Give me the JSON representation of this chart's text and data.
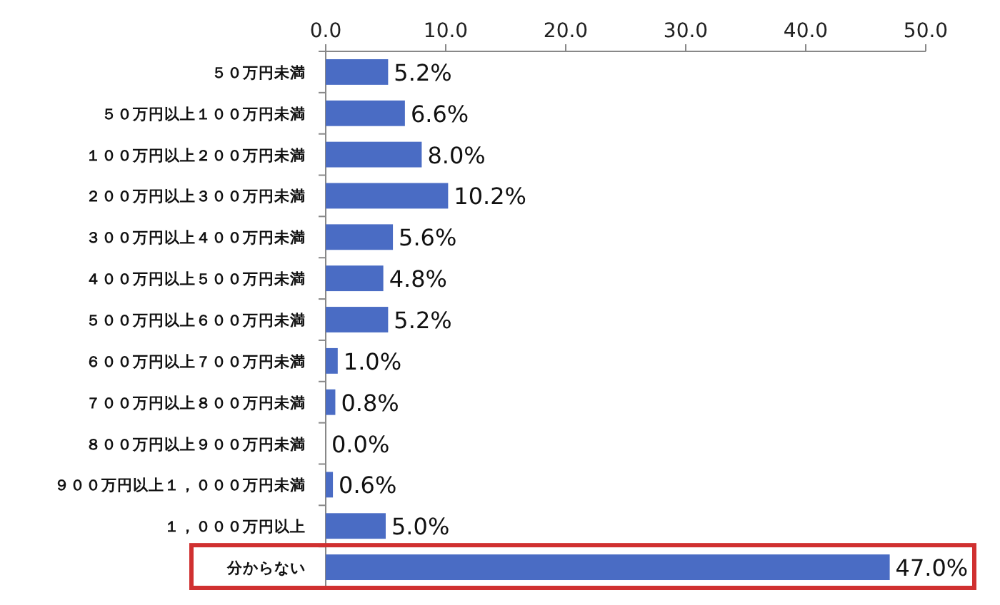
{
  "chart_data": {
    "type": "bar",
    "orientation": "horizontal",
    "categories": [
      "５０万円未満",
      "５０万円以上１００万円未満",
      "１００万円以上２００万円未満",
      "２００万円以上３００万円未満",
      "３００万円以上４００万円未満",
      "４００万円以上５００万円未満",
      "５００万円以上６００万円未満",
      "６００万円以上７００万円未満",
      "７００万円以上８００万円未満",
      "８００万円以上９００万円未満",
      "９００万円以上１，０００万円未満",
      "１，０００万円以上",
      "分からない"
    ],
    "values": [
      5.2,
      6.6,
      8.0,
      10.2,
      5.6,
      4.8,
      5.2,
      1.0,
      0.8,
      0.0,
      0.6,
      5.0,
      47.0
    ],
    "value_labels": [
      "5.2%",
      "6.6%",
      "8.0%",
      "10.2%",
      "5.6%",
      "4.8%",
      "5.2%",
      "1.0%",
      "0.8%",
      "0.0%",
      "0.6%",
      "5.0%",
      "47.0%"
    ],
    "color": "#4a6cc4",
    "xlim": [
      0,
      50
    ],
    "xticks": [
      {
        "value": 0,
        "label": "0.0"
      },
      {
        "value": 10,
        "label": "10.0"
      },
      {
        "value": 20,
        "label": "20.0"
      },
      {
        "value": 30,
        "label": "30.0"
      },
      {
        "value": 40,
        "label": "40.0"
      },
      {
        "value": 50,
        "label": "50.0"
      }
    ],
    "grid": false
  }
}
